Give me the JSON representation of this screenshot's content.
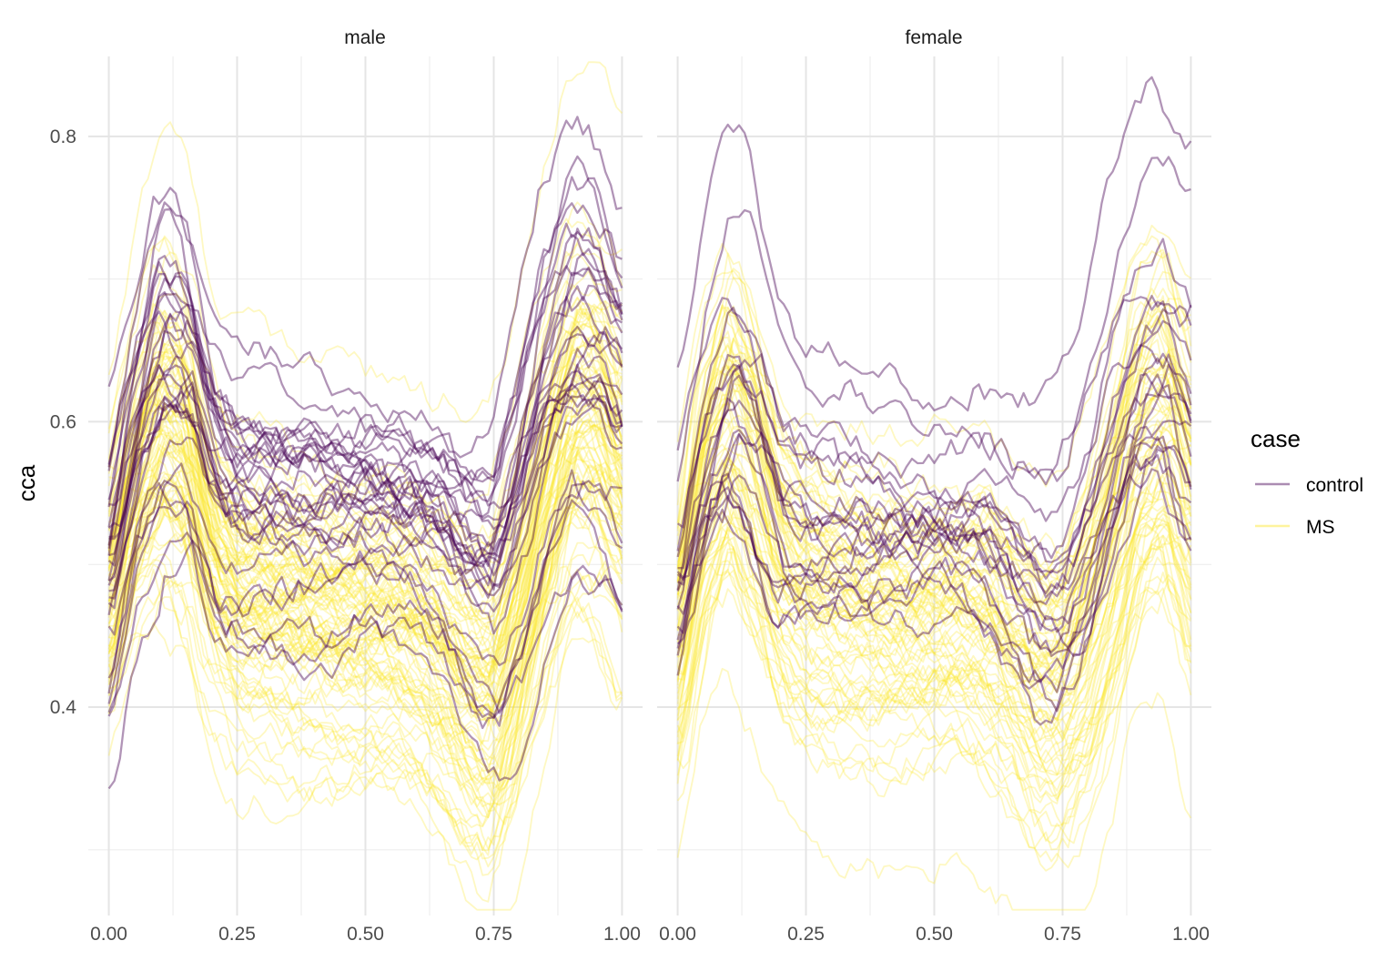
{
  "chart_data": {
    "type": "line",
    "facets": [
      "male",
      "female"
    ],
    "xlabel": "",
    "ylabel": "cca",
    "xlim": [
      -0.04,
      1.04
    ],
    "ylim": [
      0.254,
      0.856
    ],
    "x_ticks": [
      "0.00",
      "0.25",
      "0.50",
      "0.75",
      "1.00"
    ],
    "y_ticks": [
      "0.4",
      "0.6",
      "0.8"
    ],
    "grid": true,
    "legend": {
      "title": "case",
      "position": "right",
      "entries": [
        {
          "label": "control",
          "color": "#440154"
        },
        {
          "label": "MS",
          "color": "#FDE725"
        }
      ]
    },
    "groups": [
      {
        "facet": "male",
        "case": "control",
        "color": "#440154",
        "count": 30,
        "x": [
          0.0,
          0.05,
          0.1,
          0.15,
          0.2,
          0.25,
          0.3,
          0.35,
          0.4,
          0.45,
          0.5,
          0.55,
          0.6,
          0.65,
          0.7,
          0.75,
          0.8,
          0.85,
          0.9,
          0.95,
          1.0
        ],
        "mean": [
          0.49,
          0.59,
          0.65,
          0.64,
          0.57,
          0.545,
          0.545,
          0.54,
          0.54,
          0.535,
          0.54,
          0.535,
          0.535,
          0.525,
          0.5,
          0.49,
          0.55,
          0.62,
          0.66,
          0.65,
          0.61
        ],
        "spread": [
          0.05,
          0.04,
          0.045,
          0.045,
          0.05,
          0.045,
          0.045,
          0.045,
          0.045,
          0.04,
          0.035,
          0.035,
          0.035,
          0.04,
          0.045,
          0.05,
          0.06,
          0.06,
          0.055,
          0.06,
          0.06
        ]
      },
      {
        "facet": "male",
        "case": "MS",
        "color": "#FDE725",
        "count": 95,
        "x": [
          0.0,
          0.05,
          0.1,
          0.15,
          0.2,
          0.25,
          0.3,
          0.35,
          0.4,
          0.45,
          0.5,
          0.55,
          0.6,
          0.65,
          0.7,
          0.75,
          0.8,
          0.85,
          0.9,
          0.95,
          1.0
        ],
        "mean": [
          0.47,
          0.55,
          0.6,
          0.58,
          0.5,
          0.47,
          0.465,
          0.46,
          0.455,
          0.45,
          0.45,
          0.45,
          0.44,
          0.425,
          0.4,
          0.39,
          0.45,
          0.53,
          0.6,
          0.6,
          0.55
        ],
        "spread": [
          0.055,
          0.055,
          0.06,
          0.065,
          0.06,
          0.06,
          0.06,
          0.06,
          0.06,
          0.06,
          0.06,
          0.06,
          0.06,
          0.065,
          0.07,
          0.075,
          0.075,
          0.075,
          0.07,
          0.075,
          0.08
        ]
      },
      {
        "facet": "female",
        "case": "control",
        "color": "#440154",
        "count": 20,
        "x": [
          0.0,
          0.05,
          0.1,
          0.15,
          0.2,
          0.25,
          0.3,
          0.35,
          0.4,
          0.45,
          0.5,
          0.55,
          0.6,
          0.65,
          0.7,
          0.75,
          0.8,
          0.85,
          0.9,
          0.95,
          1.0
        ],
        "mean": [
          0.49,
          0.58,
          0.63,
          0.61,
          0.55,
          0.54,
          0.54,
          0.54,
          0.54,
          0.535,
          0.535,
          0.535,
          0.53,
          0.51,
          0.49,
          0.49,
          0.54,
          0.6,
          0.65,
          0.66,
          0.62
        ],
        "spread": [
          0.05,
          0.05,
          0.055,
          0.06,
          0.05,
          0.045,
          0.045,
          0.045,
          0.045,
          0.04,
          0.04,
          0.04,
          0.045,
          0.05,
          0.055,
          0.055,
          0.06,
          0.06,
          0.055,
          0.055,
          0.07
        ]
      },
      {
        "facet": "female",
        "case": "MS",
        "color": "#FDE725",
        "count": 80,
        "x": [
          0.0,
          0.05,
          0.1,
          0.15,
          0.2,
          0.25,
          0.3,
          0.35,
          0.4,
          0.45,
          0.5,
          0.55,
          0.6,
          0.65,
          0.7,
          0.75,
          0.8,
          0.85,
          0.9,
          0.95,
          1.0
        ],
        "mean": [
          0.43,
          0.54,
          0.59,
          0.55,
          0.49,
          0.47,
          0.465,
          0.46,
          0.455,
          0.455,
          0.455,
          0.455,
          0.45,
          0.43,
          0.405,
          0.4,
          0.44,
          0.5,
          0.57,
          0.59,
          0.53
        ],
        "spread": [
          0.055,
          0.06,
          0.06,
          0.065,
          0.06,
          0.06,
          0.06,
          0.06,
          0.06,
          0.055,
          0.055,
          0.055,
          0.06,
          0.06,
          0.065,
          0.065,
          0.07,
          0.07,
          0.065,
          0.07,
          0.075
        ]
      }
    ]
  }
}
